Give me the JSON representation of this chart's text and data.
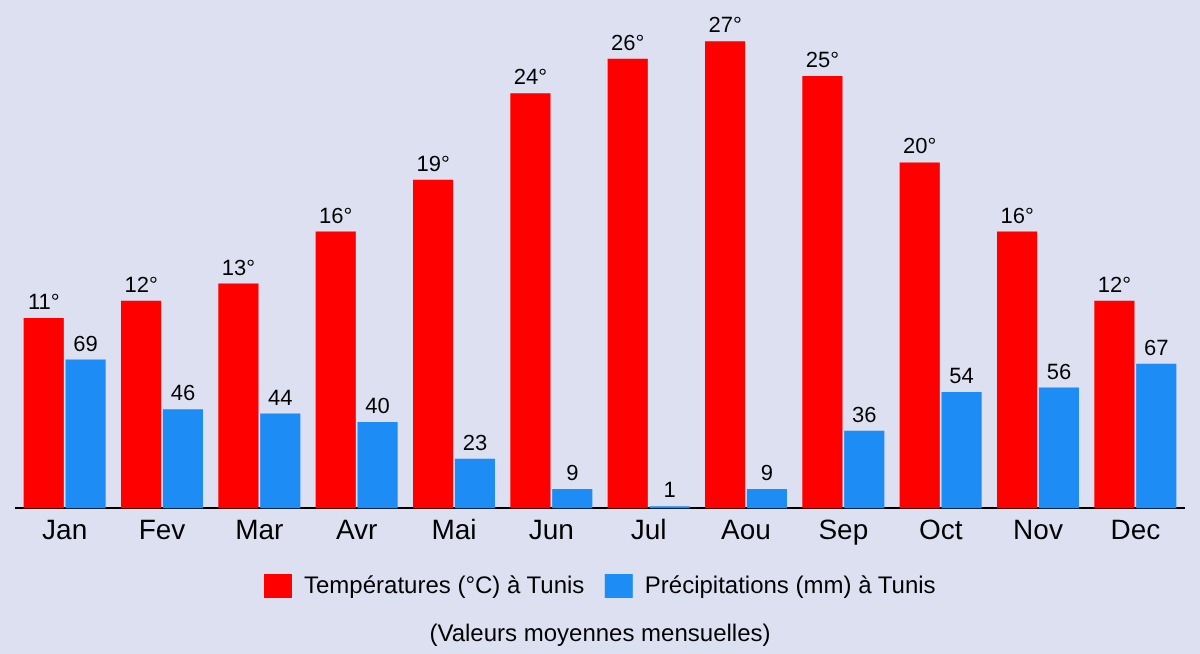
{
  "chart_data": {
    "type": "bar",
    "categories": [
      "Jan",
      "Fev",
      "Mar",
      "Avr",
      "Mai",
      "Jun",
      "Jul",
      "Aou",
      "Sep",
      "Oct",
      "Nov",
      "Dec"
    ],
    "series": [
      {
        "name": "Températures (°C) à Tunis",
        "color": "#ff0000",
        "values": [
          11,
          12,
          13,
          16,
          19,
          24,
          26,
          27,
          25,
          20,
          16,
          12
        ],
        "value_labels": [
          "11°",
          "12°",
          "13°",
          "16°",
          "19°",
          "24°",
          "26°",
          "27°",
          "25°",
          "20°",
          "16°",
          "12°"
        ]
      },
      {
        "name": "Précipitations (mm) à Tunis",
        "color": "#1e8cf5",
        "axis": "y2",
        "values": [
          69,
          46,
          44,
          40,
          23,
          9,
          1,
          9,
          36,
          54,
          56,
          67
        ],
        "value_labels": [
          "69",
          "46",
          "44",
          "40",
          "23",
          "9",
          "1",
          "9",
          "36",
          "54",
          "56",
          "67"
        ]
      }
    ],
    "tick_labels": "x",
    "grid": false,
    "legend": "bottom",
    "annotations": [
      "(Valeurs moyennes mensuelles)"
    ]
  }
}
